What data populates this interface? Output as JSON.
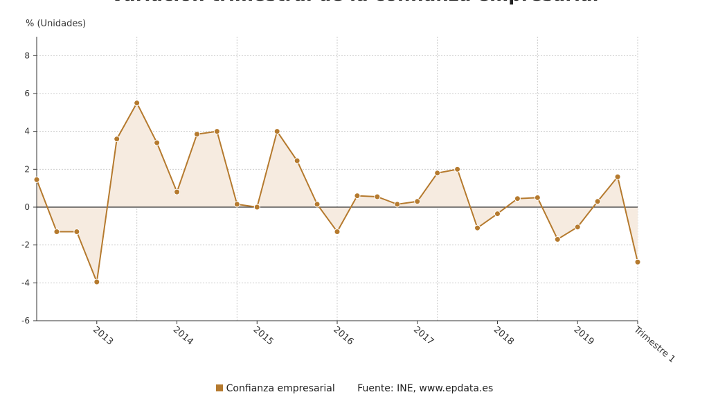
{
  "chart_data": {
    "type": "area",
    "title": "Variación trimestral de la confianza empresarial",
    "ylabel": "% (Unidades)",
    "ylim": [
      -6,
      9
    ],
    "yticks": [
      -6,
      -4,
      -2,
      0,
      2,
      4,
      6,
      8
    ],
    "grid": true,
    "legend_position": "bottom",
    "x_tick_labels": [
      {
        "index": 3,
        "label": "2013"
      },
      {
        "index": 7,
        "label": "2014"
      },
      {
        "index": 11,
        "label": "2015"
      },
      {
        "index": 15,
        "label": "2016"
      },
      {
        "index": 19,
        "label": "2017"
      },
      {
        "index": 23,
        "label": "2018"
      },
      {
        "index": 27,
        "label": "2019"
      },
      {
        "index": 30,
        "label": "Trimestre 1"
      }
    ],
    "series": [
      {
        "name": "Confianza empresarial",
        "color": "#b57a2e",
        "fill": "#f6ebe0",
        "values": [
          1.45,
          -1.3,
          -1.3,
          -3.95,
          3.6,
          5.5,
          3.4,
          0.8,
          3.85,
          4.0,
          0.15,
          0.0,
          4.0,
          2.45,
          0.15,
          -1.3,
          0.6,
          0.55,
          0.15,
          0.3,
          1.8,
          2.0,
          -1.1,
          -0.35,
          0.45,
          0.5,
          -1.7,
          -1.05,
          0.3,
          1.6,
          -2.9
        ]
      }
    ]
  },
  "legend": {
    "series_label": "Confianza empresarial",
    "source": "Fuente: INE, www.epdata.es"
  }
}
